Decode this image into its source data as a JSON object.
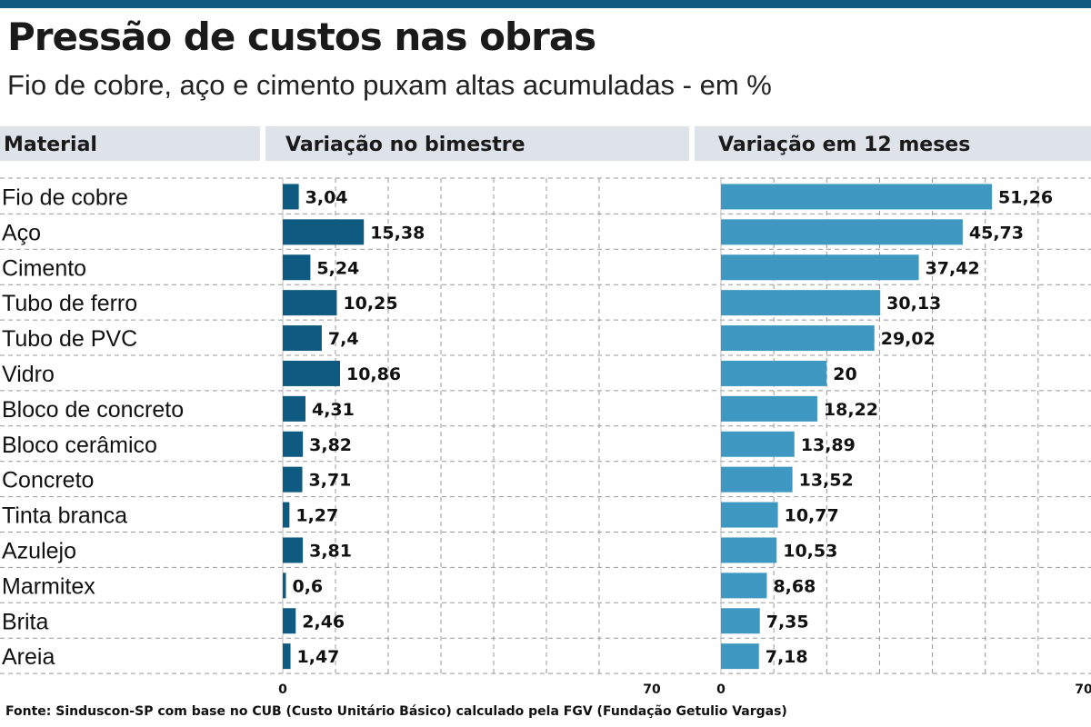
{
  "title": "Pressão de custos nas obras",
  "subtitle": "Fio de cobre, aço e cimento puxam altas acumuladas - em %",
  "source": "Fonte: Sinduscon-SP com base no CUB (Custo Unitário Básico) calculado pela FGV (Fundação Getulio Vargas)",
  "colors": {
    "top_rule": "#0e5a80",
    "header_bg": "#dde3e9",
    "bar_bimestre": "#0e5a80",
    "bar_12meses": "#3e98c2",
    "grid": "#999999"
  },
  "chart_data": {
    "type": "bar",
    "orientation": "horizontal",
    "category_header": "Material",
    "categories": [
      "Fio de cobre",
      "Aço",
      "Cimento",
      "Tubo de ferro",
      "Tubo de PVC",
      "Vidro",
      "Bloco de concreto",
      "Bloco cerâmico",
      "Concreto",
      "Tinta branca",
      "Azulejo",
      "Marmitex",
      "Brita",
      "Areia"
    ],
    "series": [
      {
        "name": "Variação no bimestre",
        "values": [
          3.04,
          15.38,
          5.24,
          10.25,
          7.4,
          10.86,
          4.31,
          3.82,
          3.71,
          1.27,
          3.81,
          0.6,
          2.46,
          1.47
        ],
        "labels": [
          "3,04",
          "15,38",
          "5,24",
          "10,25",
          "7,4",
          "10,86",
          "4,31",
          "3,82",
          "3,71",
          "1,27",
          "3,81",
          "0,6",
          "2,46",
          "1,47"
        ],
        "xlim": [
          0,
          70
        ],
        "tick_labels": [
          "0",
          "70"
        ]
      },
      {
        "name": "Variação em 12 meses",
        "values": [
          51.26,
          45.73,
          37.42,
          30.13,
          29.02,
          20,
          18.22,
          13.89,
          13.52,
          10.77,
          10.53,
          8.68,
          7.35,
          7.18
        ],
        "labels": [
          "51,26",
          "45,73",
          "37,42",
          "30,13",
          "29,02",
          "20",
          "18,22",
          "13,89",
          "13,52",
          "10,77",
          "10,53",
          "8,68",
          "7,35",
          "7,18"
        ],
        "xlim": [
          0,
          70
        ],
        "tick_labels": [
          "0",
          "70"
        ]
      }
    ],
    "grid": true
  }
}
